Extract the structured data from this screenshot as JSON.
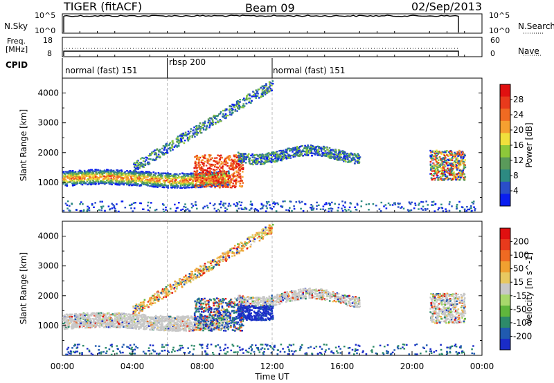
{
  "header": {
    "radar_title": "TIGER (fitACF)",
    "beam": "Beam 09",
    "date": "02/Sep/2013"
  },
  "sky_panel": {
    "label": "N.Sky",
    "left_ticks": [
      "10^5",
      "10^0"
    ],
    "right_ticks": [
      "10^5",
      "10^0"
    ],
    "right_label": "N.Search"
  },
  "freq_panel": {
    "label_line1": "Freq.",
    "label_line2": "[MHz]",
    "left_ticks": [
      "18",
      "8"
    ],
    "right_ticks": [
      "60",
      "0"
    ],
    "right_label": "Nave"
  },
  "cpid": {
    "label": "CPID",
    "segments": [
      {
        "name": "normal (fast) 151",
        "start_hour": 0
      },
      {
        "name": "rbsp 200",
        "start_hour": 6
      },
      {
        "name": "normal (fast) 151",
        "start_hour": 12
      }
    ]
  },
  "chart_data": [
    {
      "type": "heatmap",
      "parameter": "Power",
      "ylabel": "Slant Range [km]",
      "ylim": [
        0,
        4500
      ],
      "yticks": [
        "1000",
        "2000",
        "3000",
        "4000"
      ],
      "xlim_hours": [
        0,
        24
      ],
      "colorbar": {
        "label": "Power [dB]",
        "ticks": [
          "4",
          "8",
          "12",
          "16",
          "20",
          "24",
          "28"
        ],
        "colors": [
          "#0a1ef0",
          "#2a4ec8",
          "#2d8a82",
          "#5a9a5a",
          "#8dc83a",
          "#f0e03c",
          "#f5a030",
          "#ef6a22",
          "#e83a1c",
          "#e01010"
        ]
      }
    },
    {
      "type": "heatmap",
      "parameter": "Velocity",
      "ylabel": "Slant Range [km]",
      "ylim": [
        0,
        4500
      ],
      "yticks": [
        "1000",
        "2000",
        "3000",
        "4000"
      ],
      "xlim_hours": [
        0,
        24
      ],
      "colorbar": {
        "label": "Velocity [m s^-1]",
        "ticks": [
          "200",
          "100",
          "50",
          "15",
          "-15",
          "-50",
          "-100",
          "-200"
        ],
        "colors": [
          "#1a2cc8",
          "#205ab0",
          "#2d8a6a",
          "#5fb63c",
          "#a8d86c",
          "#c8c8c8",
          "#e8c860",
          "#f0a030",
          "#ef6a22",
          "#e83a1c",
          "#e01010"
        ]
      }
    }
  ],
  "time_axis": {
    "label": "Time UT",
    "ticks": [
      "00:00",
      "04:00",
      "08:00",
      "12:00",
      "16:00",
      "20:00",
      "00:00"
    ]
  }
}
